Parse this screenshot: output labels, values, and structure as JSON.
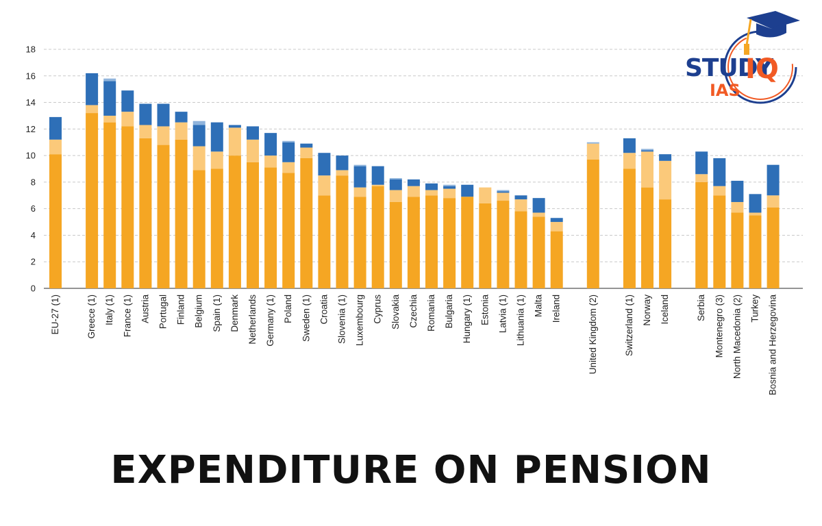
{
  "headline": "EXPENDITURE ON PENSION",
  "logo": {
    "study": "STUDY",
    "iq": "IQ",
    "ias": "IAS",
    "icon": "graduation-cap-icon",
    "colors": {
      "navy": "#1d3f8f",
      "orange": "#f15a24",
      "gold": "#f5a623"
    }
  },
  "chart_data": {
    "type": "bar",
    "stacked": true,
    "title": "",
    "xlabel": "",
    "ylabel": "",
    "ylim": [
      0,
      18
    ],
    "yticks": [
      "0",
      "2",
      "4",
      "6",
      "8",
      "10",
      "12",
      "14",
      "16",
      "18"
    ],
    "grid": true,
    "legend": "none",
    "categories": [
      "EU-27  (1)",
      "Greece (1)",
      "Italy (1)",
      "France (1)",
      "Austria",
      "Portugal",
      "Finland",
      "Belgium",
      "Spain (1)",
      "Denmark",
      "Netherlands",
      "Germany (1)",
      "Poland",
      "Sweden (1)",
      "Croatia",
      "Slovenia (1)",
      "Luxembourg",
      "Cyprus",
      "Slovakia",
      "Czechia",
      "Romania",
      "Bulgaria",
      "Hungary (1)",
      "Estonia",
      "Latvia (1)",
      "Lithuania (1)",
      "Malta",
      "Ireland",
      "United Kingdom (2)",
      "Switzerland (1)",
      "Norway",
      "Iceland",
      "Serbia",
      "Montenegro (3)",
      "North Macedonia (2)",
      "Turkey",
      "Bosnia and Herzegovina"
    ],
    "groups": [
      1,
      27,
      1,
      3,
      5
    ],
    "series": [
      {
        "color": "#f5a623",
        "values": [
          10.1,
          13.2,
          12.5,
          12.2,
          11.3,
          10.8,
          11.2,
          8.9,
          9.0,
          10.0,
          9.5,
          9.1,
          8.7,
          9.8,
          7.0,
          8.5,
          6.9,
          7.7,
          6.5,
          6.9,
          7.0,
          6.8,
          6.9,
          6.4,
          6.6,
          5.8,
          5.4,
          4.3,
          9.7,
          9.0,
          7.6,
          6.7,
          8.0,
          7.0,
          5.7,
          5.5,
          6.1
        ]
      },
      {
        "color": "#fbc97a",
        "values": [
          1.1,
          0.6,
          0.5,
          1.1,
          1.0,
          1.4,
          1.3,
          1.8,
          1.3,
          2.1,
          1.7,
          0.9,
          0.8,
          0.8,
          1.5,
          0.4,
          0.7,
          0.1,
          0.9,
          0.8,
          0.4,
          0.7,
          0.0,
          1.2,
          0.6,
          0.9,
          0.3,
          0.7,
          1.2,
          1.2,
          2.7,
          2.9,
          0.6,
          0.7,
          0.8,
          0.2,
          0.9
        ]
      },
      {
        "color": "#2e6fb7",
        "values": [
          1.7,
          2.4,
          2.6,
          1.6,
          1.6,
          1.7,
          0.8,
          1.6,
          2.2,
          0.2,
          1.0,
          1.7,
          1.5,
          0.3,
          1.7,
          1.1,
          1.6,
          1.4,
          0.8,
          0.5,
          0.5,
          0.2,
          0.9,
          0.0,
          0.1,
          0.3,
          1.1,
          0.3,
          0.0,
          1.1,
          0.1,
          0.5,
          1.7,
          2.1,
          1.6,
          1.4,
          2.3
        ]
      },
      {
        "color": "#8fb4dc",
        "values": [
          0,
          0,
          0.2,
          0,
          0,
          0,
          0,
          0.3,
          0,
          0,
          0,
          0,
          0.1,
          0,
          0,
          0,
          0.1,
          0,
          0.1,
          0,
          0,
          0.1,
          0,
          0,
          0.1,
          0,
          0,
          0,
          0.1,
          0,
          0.1,
          0,
          0,
          0,
          0,
          0,
          0
        ]
      }
    ]
  }
}
